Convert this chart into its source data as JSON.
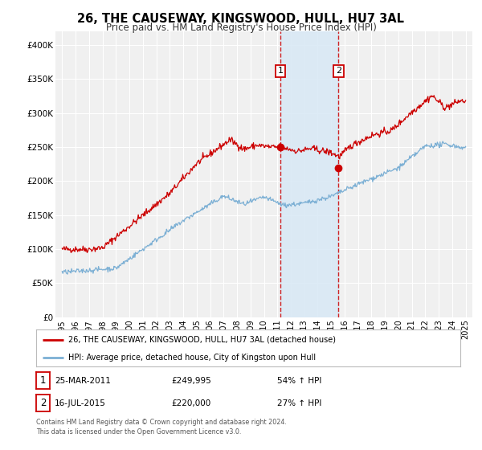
{
  "title": "26, THE CAUSEWAY, KINGSWOOD, HULL, HU7 3AL",
  "subtitle": "Price paid vs. HM Land Registry's House Price Index (HPI)",
  "background_color": "#ffffff",
  "plot_bg_color": "#f0f0f0",
  "grid_color": "#ffffff",
  "red_line_color": "#cc0000",
  "blue_line_color": "#7bafd4",
  "vline_color": "#cc0000",
  "shade_color": "#d8e8f5",
  "sale1_x": 2011.23,
  "sale1_y": 249995,
  "sale2_x": 2015.55,
  "sale2_y": 220000,
  "sale1_date": "25-MAR-2011",
  "sale1_price": "£249,995",
  "sale1_hpi": "54% ↑ HPI",
  "sale2_date": "16-JUL-2015",
  "sale2_price": "£220,000",
  "sale2_hpi": "27% ↑ HPI",
  "legend_line1": "26, THE CAUSEWAY, KINGSWOOD, HULL, HU7 3AL (detached house)",
  "legend_line2": "HPI: Average price, detached house, City of Kingston upon Hull",
  "footer1": "Contains HM Land Registry data © Crown copyright and database right 2024.",
  "footer2": "This data is licensed under the Open Government Licence v3.0.",
  "xlim": [
    1994.5,
    2025.5
  ],
  "ylim": [
    0,
    420000
  ],
  "yticks": [
    0,
    50000,
    100000,
    150000,
    200000,
    250000,
    300000,
    350000,
    400000
  ],
  "ytick_labels": [
    "£0",
    "£50K",
    "£100K",
    "£150K",
    "£200K",
    "£250K",
    "£300K",
    "£350K",
    "£400K"
  ],
  "xticks": [
    1995,
    1996,
    1997,
    1998,
    1999,
    2000,
    2001,
    2002,
    2003,
    2004,
    2005,
    2006,
    2007,
    2008,
    2009,
    2010,
    2011,
    2012,
    2013,
    2014,
    2015,
    2016,
    2017,
    2018,
    2019,
    2020,
    2021,
    2022,
    2023,
    2024,
    2025
  ]
}
